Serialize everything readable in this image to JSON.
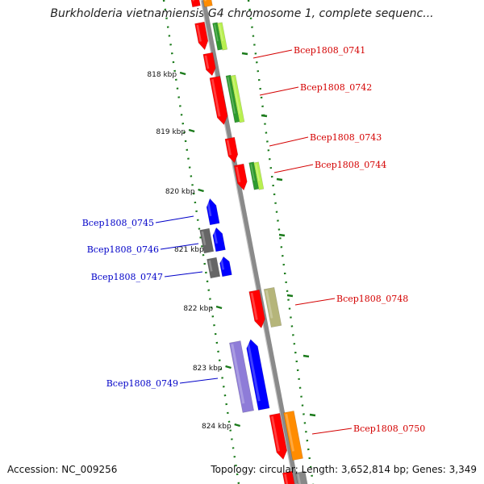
{
  "title": "Burkholderia vietnamiensis G4 chromosome 1, complete sequenc...",
  "footer": {
    "accession": "Accession: NC_009256",
    "summary": "Topology: circular; Length: 3,652,814 bp; Genes: 3,349"
  },
  "colors": {
    "backbone": "#8a8a8a",
    "tick": "#1a7a1a",
    "forward_label": "#d40000",
    "reverse_label": "#0000c8"
  },
  "kbp_ticks": [
    "818 kbp",
    "819 kbp",
    "820 kbp",
    "821 kbp",
    "822 kbp",
    "823 kbp",
    "824 kbp"
  ],
  "genes": [
    {
      "label": "Bcep1808_0741",
      "strand": "+"
    },
    {
      "label": "Bcep1808_0742",
      "strand": "+"
    },
    {
      "label": "Bcep1808_0743",
      "strand": "+"
    },
    {
      "label": "Bcep1808_0744",
      "strand": "+"
    },
    {
      "label": "Bcep1808_0745",
      "strand": "-"
    },
    {
      "label": "Bcep1808_0746",
      "strand": "-"
    },
    {
      "label": "Bcep1808_0747",
      "strand": "-"
    },
    {
      "label": "Bcep1808_0748",
      "strand": "+"
    },
    {
      "label": "Bcep1808_0749",
      "strand": "-"
    },
    {
      "label": "Bcep1808_0750",
      "strand": "+"
    }
  ]
}
